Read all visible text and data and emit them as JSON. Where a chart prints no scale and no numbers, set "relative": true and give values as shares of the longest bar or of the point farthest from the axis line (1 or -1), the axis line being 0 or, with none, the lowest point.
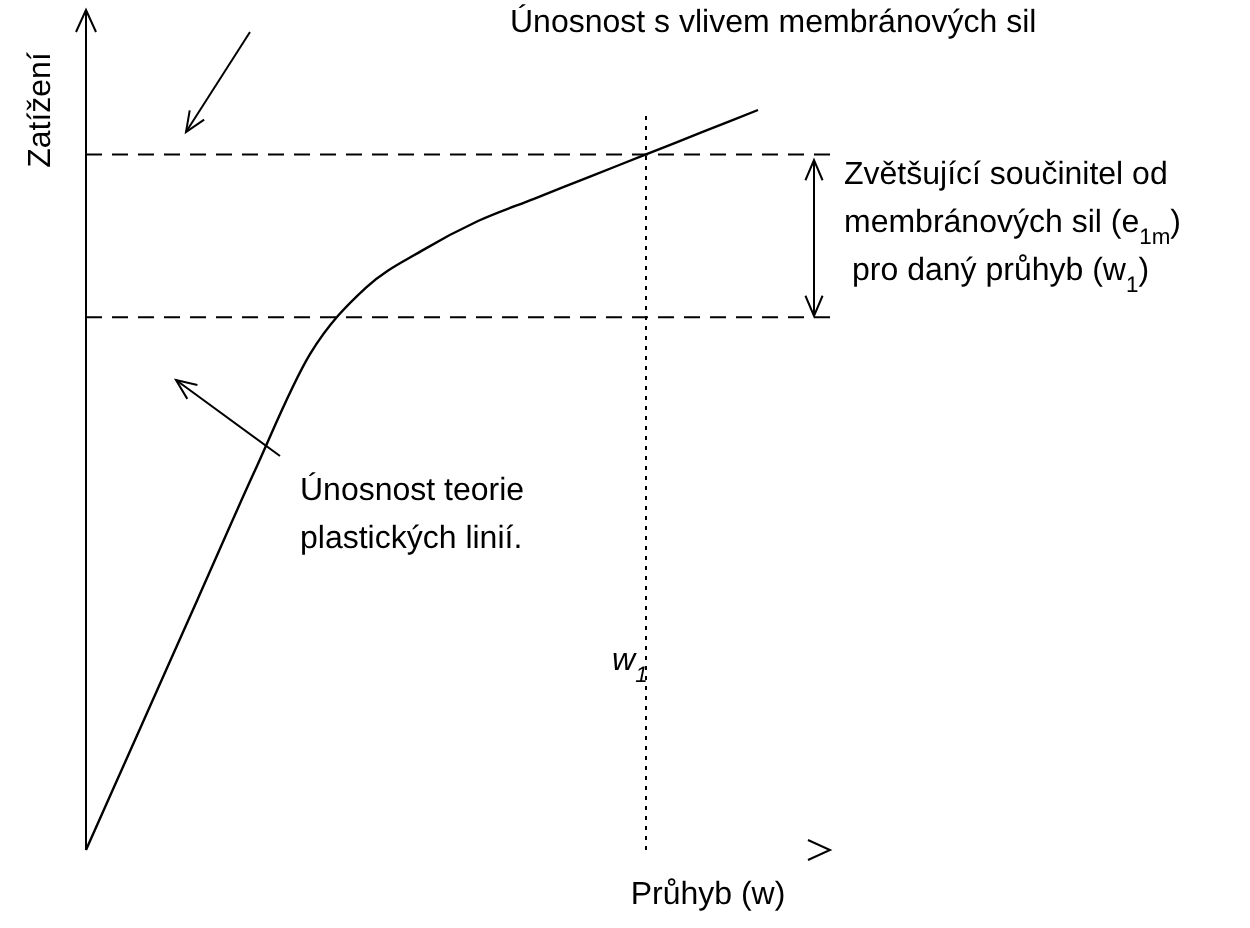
{
  "chart_data": {
    "type": "line",
    "relative": true,
    "xlabel": "Průhyb (w)",
    "ylabel": "Zatížení",
    "categories": [
      null,
      null,
      null,
      null,
      null,
      null,
      null,
      null,
      null,
      null,
      null,
      null,
      null
    ],
    "series": [
      {
        "color": "#000000",
        "values": [
          0,
          0.17,
          0.34,
          0.51,
          0.67,
          0.76,
          0.81,
          0.85,
          0.88,
          0.91,
          0.94,
          0.97,
          1.0
        ]
      }
    ],
    "marker": "none",
    "line_style": "solid",
    "ref_lines": [
      {
        "axis": "y",
        "value": 0.94,
        "line_style": "dashed",
        "color": "#000000"
      },
      {
        "axis": "y",
        "value": 0.72,
        "line_style": "dashed",
        "color": "#000000"
      }
    ],
    "annotations": [
      "Únosnost s vlivem membránových sil",
      "Zvětšující součinitel od\nmembránových sil (e$_{1m}$)\npro daný průhyb (w$_{1}$)",
      "Únosnost teorie\nplastických linií.",
      "w$_{1}$"
    ]
  }
}
